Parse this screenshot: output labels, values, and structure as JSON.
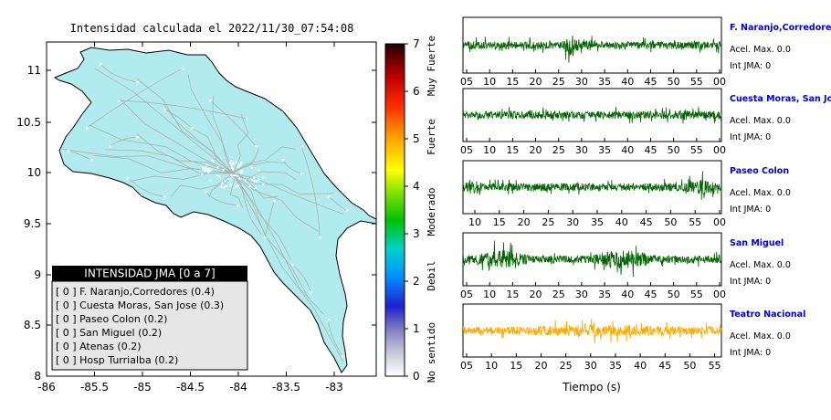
{
  "title": "Intensidad calculada el 2022/11/30_07:54:08",
  "map": {
    "x_ticks": [
      "-86",
      "-85.5",
      "-85",
      "-84.5",
      "-84",
      "-83.5",
      "-83"
    ],
    "y_ticks": [
      "11",
      "10.5",
      "10",
      "9.5",
      "9",
      "8.5",
      "8"
    ],
    "land_color": "#b2ebed",
    "legend": {
      "header": "INTENSIDAD JMA [0 a 7]",
      "items": [
        "[ 0 ]  F. Naranjo,Corredores (0.4)",
        "[ 0 ]  Cuesta Moras, San Jose (0.3)",
        "[ 0 ]  Paseo Colon (0.2)",
        "[ 0 ]  San Miguel (0.2)",
        "[ 0 ]  Atenas (0.2)",
        "[ 0 ]  Hosp Turrialba (0.2)"
      ]
    }
  },
  "colorbar": {
    "ticks": [
      "0",
      "1",
      "2",
      "3",
      "4",
      "5",
      "6",
      "7"
    ],
    "labels": [
      "No sentido",
      "Debil",
      "Moderado",
      "Fuerte",
      "Muy Fuerte"
    ]
  },
  "waveforms": {
    "x_label": "Tiempo (s)",
    "stations": [
      {
        "name": "F. Naranjo,Corredores",
        "acel": "Acel. Max. 0.0",
        "int": "Int JMA: 0",
        "color": "#006400",
        "ticks": [
          "05",
          "10",
          "15",
          "20",
          "25",
          "30",
          "35",
          "40",
          "45",
          "50",
          "55",
          "00"
        ]
      },
      {
        "name": "Cuesta Moras, San Jose",
        "acel": "Acel. Max. 0.0",
        "int": "Int JMA: 0",
        "color": "#006400",
        "ticks": [
          "05",
          "10",
          "15",
          "20",
          "25",
          "30",
          "35",
          "40",
          "45",
          "50",
          "55",
          "00"
        ]
      },
      {
        "name": "Paseo Colon",
        "acel": "Acel. Max. 0.0",
        "int": "Int JMA: 0",
        "color": "#006400",
        "ticks": [
          "10",
          "15",
          "20",
          "25",
          "30",
          "35",
          "40",
          "45",
          "50",
          "55",
          "00"
        ]
      },
      {
        "name": "San Miguel",
        "acel": "Acel. Max. 0.0",
        "int": "Int JMA: 0",
        "color": "#006400",
        "ticks": [
          "05",
          "10",
          "15",
          "20",
          "25",
          "30",
          "35",
          "40",
          "45",
          "50",
          "55",
          "00"
        ]
      },
      {
        "name": "Teatro Nacional",
        "acel": "Acel. Max. 0.0",
        "int": "Int JMA: 0",
        "color": "#ffaa00",
        "ticks": [
          "05",
          "10",
          "15",
          "20",
          "25",
          "30",
          "35",
          "40",
          "45",
          "50",
          "55"
        ]
      }
    ]
  },
  "chart_data": [
    {
      "type": "heatmap",
      "title": "Intensidad calculada el 2022/11/30_07:54:08",
      "x_ticks": [
        -86,
        -85.5,
        -85,
        -84.5,
        -84,
        -83.5,
        -83
      ],
      "y_ticks": [
        11,
        10.5,
        10,
        9.5,
        9,
        8.5,
        8
      ],
      "xlim": [
        -86,
        -82.6
      ],
      "ylim": [
        8,
        11.4
      ],
      "colorbar": {
        "range": [
          0,
          7
        ],
        "labels": [
          "No sentido",
          "Debil",
          "Moderado",
          "Fuerte",
          "Muy Fuerte"
        ]
      },
      "stations": [
        {
          "name": "F. Naranjo,Corredores",
          "intensity": 0,
          "value": 0.4
        },
        {
          "name": "Cuesta Moras, San Jose",
          "intensity": 0,
          "value": 0.3
        },
        {
          "name": "Paseo Colon",
          "intensity": 0,
          "value": 0.2
        },
        {
          "name": "San Miguel",
          "intensity": 0,
          "value": 0.2
        },
        {
          "name": "Atenas",
          "intensity": 0,
          "value": 0.2
        },
        {
          "name": "Hosp Turrialba",
          "intensity": 0,
          "value": 0.2
        }
      ]
    },
    {
      "type": "line",
      "xlabel": "Tiempo (s)",
      "series": [
        {
          "name": "F. Naranjo,Corredores",
          "acel_max": 0.0,
          "int_jma": 0
        },
        {
          "name": "Cuesta Moras, San Jose",
          "acel_max": 0.0,
          "int_jma": 0
        },
        {
          "name": "Paseo Colon",
          "acel_max": 0.0,
          "int_jma": 0
        },
        {
          "name": "San Miguel",
          "acel_max": 0.0,
          "int_jma": 0
        },
        {
          "name": "Teatro Nacional",
          "acel_max": 0.0,
          "int_jma": 0
        }
      ]
    }
  ]
}
